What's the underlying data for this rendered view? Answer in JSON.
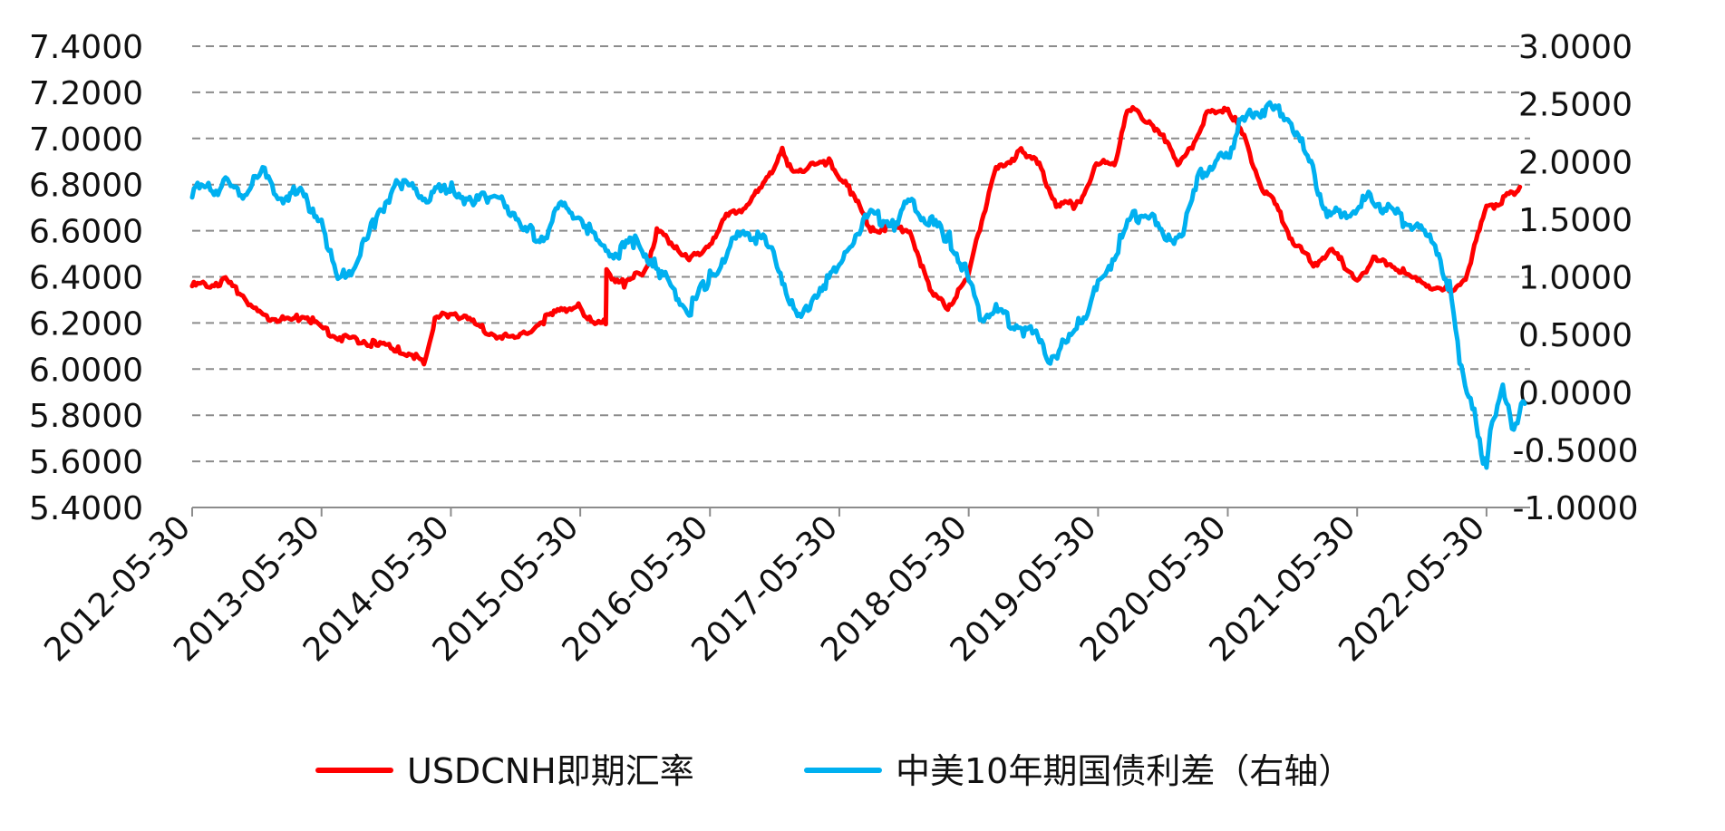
{
  "chart_data": {
    "type": "line",
    "dual_axis": true,
    "x_ticks": [
      "2012-05-30",
      "2013-05-30",
      "2014-05-30",
      "2015-05-30",
      "2016-05-30",
      "2017-05-30",
      "2018-05-30",
      "2019-05-30",
      "2020-05-30",
      "2021-05-30",
      "2022-05-30"
    ],
    "x_range": [
      "2012-05-30",
      "2022-09-30"
    ],
    "y_left": {
      "ticks": [
        "7.4000",
        "7.2000",
        "7.0000",
        "6.8000",
        "6.6000",
        "6.4000",
        "6.2000",
        "6.0000",
        "5.8000",
        "5.6000",
        "5.4000"
      ],
      "range": [
        5.4,
        7.4
      ]
    },
    "y_right": {
      "ticks": [
        "3.0000",
        "2.5000",
        "2.0000",
        "1.5000",
        "1.0000",
        "0.5000",
        "0.0000",
        "-0.5000",
        "-1.0000"
      ],
      "range": [
        -1.0,
        3.0
      ]
    },
    "grid": "horizontal-dashed",
    "legend_position": "bottom",
    "series": [
      {
        "name": "USDCNH即期汇率",
        "axis": "left",
        "color": "#ff0000",
        "points": [
          [
            "2012-05-30",
            6.36
          ],
          [
            "2012-07-15",
            6.37
          ],
          [
            "2012-09-01",
            6.38
          ],
          [
            "2012-10-15",
            6.33
          ],
          [
            "2012-12-01",
            6.24
          ],
          [
            "2013-01-15",
            6.22
          ],
          [
            "2013-03-01",
            6.21
          ],
          [
            "2013-04-15",
            6.23
          ],
          [
            "2013-05-30",
            6.18
          ],
          [
            "2013-07-15",
            6.14
          ],
          [
            "2013-09-01",
            6.13
          ],
          [
            "2013-11-01",
            6.11
          ],
          [
            "2014-01-01",
            6.08
          ],
          [
            "2014-02-15",
            6.06
          ],
          [
            "2014-03-15",
            6.03
          ],
          [
            "2014-04-15",
            6.21
          ],
          [
            "2014-06-01",
            6.25
          ],
          [
            "2014-08-01",
            6.2
          ],
          [
            "2014-10-01",
            6.15
          ],
          [
            "2014-12-01",
            6.13
          ],
          [
            "2015-02-01",
            6.2
          ],
          [
            "2015-04-01",
            6.25
          ],
          [
            "2015-05-30",
            6.28
          ],
          [
            "2015-06-15",
            6.21
          ],
          [
            "2015-08-10",
            6.21
          ],
          [
            "2015-08-12",
            6.42
          ],
          [
            "2015-10-01",
            6.37
          ],
          [
            "2015-12-01",
            6.43
          ],
          [
            "2016-01-01",
            6.6
          ],
          [
            "2016-02-15",
            6.55
          ],
          [
            "2016-04-01",
            6.47
          ],
          [
            "2016-05-30",
            6.55
          ],
          [
            "2016-07-15",
            6.66
          ],
          [
            "2016-09-01",
            6.7
          ],
          [
            "2016-11-01",
            6.8
          ],
          [
            "2016-12-20",
            6.96
          ],
          [
            "2017-01-15",
            6.85
          ],
          [
            "2017-03-01",
            6.88
          ],
          [
            "2017-05-01",
            6.9
          ],
          [
            "2017-07-01",
            6.77
          ],
          [
            "2017-09-01",
            6.6
          ],
          [
            "2017-10-15",
            6.62
          ],
          [
            "2017-12-15",
            6.6
          ],
          [
            "2018-02-15",
            6.32
          ],
          [
            "2018-04-01",
            6.27
          ],
          [
            "2018-05-30",
            6.4
          ],
          [
            "2018-07-01",
            6.62
          ],
          [
            "2018-08-15",
            6.86
          ],
          [
            "2018-10-30",
            6.95
          ],
          [
            "2018-12-15",
            6.88
          ],
          [
            "2019-02-01",
            6.72
          ],
          [
            "2019-04-01",
            6.71
          ],
          [
            "2019-05-30",
            6.9
          ],
          [
            "2019-07-15",
            6.88
          ],
          [
            "2019-08-15",
            7.1
          ],
          [
            "2019-09-15",
            7.13
          ],
          [
            "2019-11-01",
            7.04
          ],
          [
            "2019-12-15",
            6.98
          ],
          [
            "2020-01-15",
            6.88
          ],
          [
            "2020-03-01",
            7.0
          ],
          [
            "2020-04-01",
            7.1
          ],
          [
            "2020-05-30",
            7.14
          ],
          [
            "2020-07-15",
            7.0
          ],
          [
            "2020-09-01",
            6.8
          ],
          [
            "2020-10-15",
            6.7
          ],
          [
            "2020-12-01",
            6.55
          ],
          [
            "2021-02-01",
            6.45
          ],
          [
            "2021-03-15",
            6.52
          ],
          [
            "2021-05-30",
            6.39
          ],
          [
            "2021-07-15",
            6.47
          ],
          [
            "2021-09-01",
            6.46
          ],
          [
            "2021-11-01",
            6.39
          ],
          [
            "2022-01-01",
            6.36
          ],
          [
            "2022-03-01",
            6.33
          ],
          [
            "2022-04-01",
            6.4
          ],
          [
            "2022-05-30",
            6.7
          ],
          [
            "2022-07-01",
            6.72
          ],
          [
            "2022-08-01",
            6.75
          ],
          [
            "2022-09-01",
            6.79
          ]
        ]
      },
      {
        "name": "中美10年期国债利差（右轴）",
        "axis": "right",
        "color": "#00b0f0",
        "points": [
          [
            "2012-05-30",
            1.75
          ],
          [
            "2012-07-15",
            1.75
          ],
          [
            "2012-09-01",
            1.8
          ],
          [
            "2012-10-15",
            1.72
          ],
          [
            "2012-12-15",
            1.9
          ],
          [
            "2013-02-01",
            1.7
          ],
          [
            "2013-04-01",
            1.72
          ],
          [
            "2013-05-30",
            1.5
          ],
          [
            "2013-07-15",
            0.95
          ],
          [
            "2013-09-01",
            1.1
          ],
          [
            "2013-11-01",
            1.5
          ],
          [
            "2014-01-01",
            1.85
          ],
          [
            "2014-02-15",
            1.75
          ],
          [
            "2014-04-01",
            1.7
          ],
          [
            "2014-06-01",
            1.78
          ],
          [
            "2014-08-01",
            1.62
          ],
          [
            "2014-10-15",
            1.75
          ],
          [
            "2014-12-15",
            1.4
          ],
          [
            "2015-02-15",
            1.35
          ],
          [
            "2015-04-01",
            1.6
          ],
          [
            "2015-05-30",
            1.55
          ],
          [
            "2015-07-15",
            1.3
          ],
          [
            "2015-09-01",
            1.2
          ],
          [
            "2015-11-01",
            1.3
          ],
          [
            "2015-12-30",
            1.1
          ],
          [
            "2016-02-15",
            0.9
          ],
          [
            "2016-04-01",
            0.7
          ],
          [
            "2016-05-30",
            1.0
          ],
          [
            "2016-07-15",
            1.2
          ],
          [
            "2016-09-01",
            1.4
          ],
          [
            "2016-11-01",
            1.3
          ],
          [
            "2016-12-15",
            1.05
          ],
          [
            "2017-02-01",
            0.6
          ],
          [
            "2017-04-01",
            0.9
          ],
          [
            "2017-05-30",
            1.05
          ],
          [
            "2017-07-15",
            1.4
          ],
          [
            "2017-09-01",
            1.55
          ],
          [
            "2017-11-01",
            1.45
          ],
          [
            "2017-12-15",
            1.65
          ],
          [
            "2018-02-01",
            1.5
          ],
          [
            "2018-04-01",
            1.35
          ],
          [
            "2018-05-30",
            1.0
          ],
          [
            "2018-07-01",
            0.65
          ],
          [
            "2018-08-15",
            0.7
          ],
          [
            "2018-10-01",
            0.6
          ],
          [
            "2018-12-01",
            0.5
          ],
          [
            "2019-01-15",
            0.3
          ],
          [
            "2019-03-15",
            0.45
          ],
          [
            "2019-04-15",
            0.65
          ],
          [
            "2019-05-30",
            0.9
          ],
          [
            "2019-07-15",
            1.2
          ],
          [
            "2019-09-01",
            1.5
          ],
          [
            "2019-10-15",
            1.55
          ],
          [
            "2019-12-15",
            1.3
          ],
          [
            "2020-01-30",
            1.45
          ],
          [
            "2020-03-15",
            1.9
          ],
          [
            "2020-05-01",
            2.0
          ],
          [
            "2020-05-30",
            2.05
          ],
          [
            "2020-07-01",
            2.3
          ],
          [
            "2020-08-15",
            2.45
          ],
          [
            "2020-10-01",
            2.45
          ],
          [
            "2020-11-15",
            2.4
          ],
          [
            "2021-01-15",
            2.0
          ],
          [
            "2021-03-01",
            1.6
          ],
          [
            "2021-04-15",
            1.5
          ],
          [
            "2021-05-30",
            1.6
          ],
          [
            "2021-07-01",
            1.7
          ],
          [
            "2021-08-15",
            1.6
          ],
          [
            "2021-10-01",
            1.5
          ],
          [
            "2021-12-01",
            1.4
          ],
          [
            "2022-01-15",
            1.2
          ],
          [
            "2022-02-15",
            0.9
          ],
          [
            "2022-03-15",
            0.3
          ],
          [
            "2022-04-15",
            -0.1
          ],
          [
            "2022-05-01",
            -0.25
          ],
          [
            "2022-05-30",
            -0.7
          ],
          [
            "2022-06-15",
            -0.2
          ],
          [
            "2022-07-15",
            0.0
          ],
          [
            "2022-08-15",
            -0.3
          ],
          [
            "2022-09-15",
            -0.1
          ]
        ]
      }
    ],
    "legend": [
      {
        "label": "USDCNH即期汇率",
        "color": "#ff0000"
      },
      {
        "label": "中美10年期国债利差（右轴）",
        "color": "#00b0f0"
      }
    ]
  }
}
